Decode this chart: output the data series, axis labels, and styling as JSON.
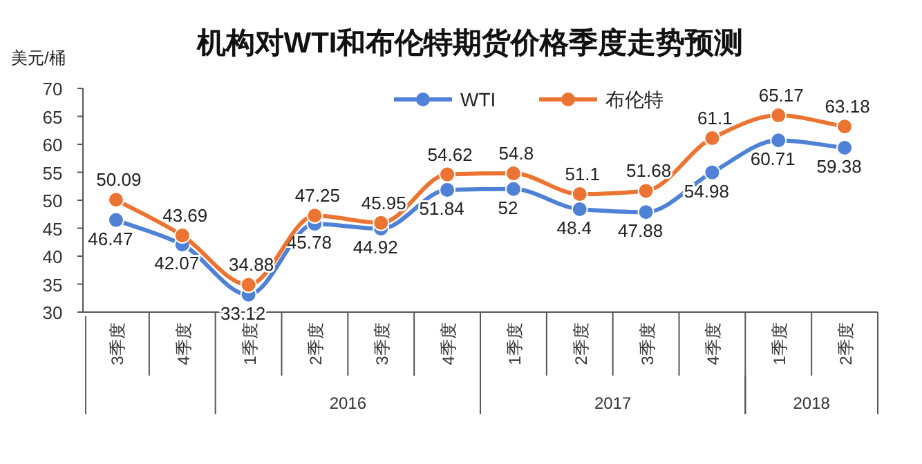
{
  "chart_data": {
    "type": "line",
    "title": "机构对WTI和布伦特期货价格季度走势预测",
    "ylabel": "美元/桶",
    "categories": [
      "3季度",
      "4季度",
      "1季度",
      "2季度",
      "3季度",
      "4季度",
      "1季度",
      "2季度",
      "3季度",
      "4季度",
      "1季度",
      "2季度"
    ],
    "series": [
      {
        "name": "WTI",
        "color": "#4f81d6",
        "values": [
          46.47,
          42.07,
          33.12,
          45.78,
          44.92,
          51.84,
          52,
          48.4,
          47.88,
          54.98,
          60.71,
          59.38
        ]
      },
      {
        "name": "布伦特",
        "color": "#ec7432",
        "values": [
          50.09,
          43.69,
          34.88,
          47.25,
          45.95,
          54.62,
          54.8,
          51.1,
          51.68,
          61.1,
          65.17,
          63.18
        ]
      }
    ],
    "ylim": [
      30,
      70
    ],
    "yticks": [
      30,
      35,
      40,
      45,
      50,
      55,
      60,
      65,
      70
    ],
    "data_labels": true,
    "marker": "circle",
    "grid": false,
    "legend": "top",
    "annotations": [
      "2016",
      "2017",
      "2018"
    ]
  }
}
